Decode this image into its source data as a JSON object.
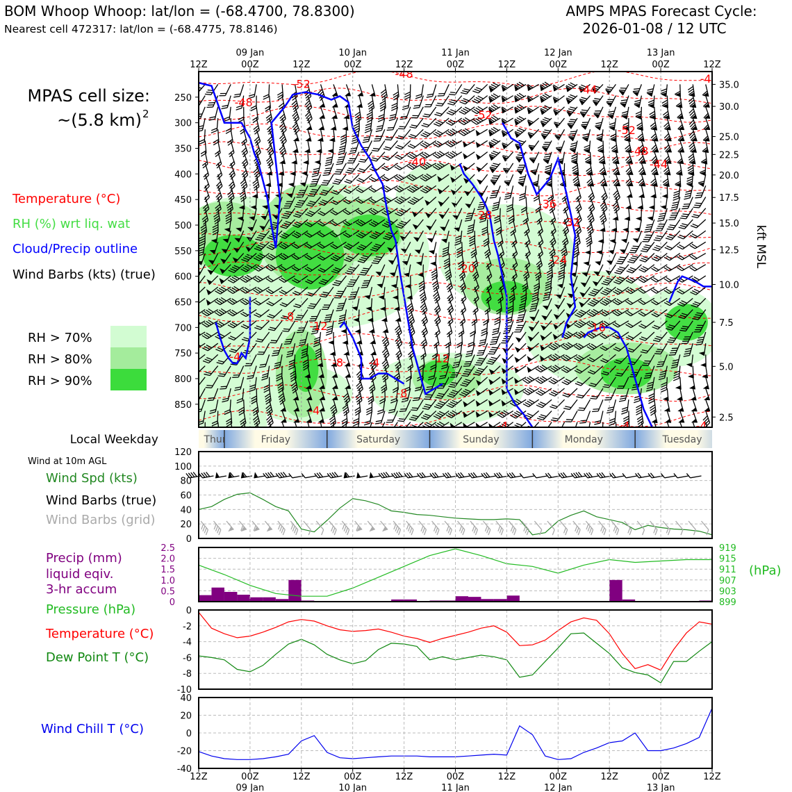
{
  "header": {
    "title_left": "BOM Whoop Whoop: lat/lon = (-68.4700, 78.8300)",
    "subtitle_left": "Nearest cell 472317: lat/lon = (-68.4775, 78.8146)",
    "title_right_line1": "AMPS MPAS Forecast Cycle:",
    "title_right_line2": "2026-01-08 / 12 UTC"
  },
  "cell_size": {
    "line1": "MPAS cell size:",
    "line2": "~(5.8 km)",
    "sup": "2"
  },
  "legend": {
    "temperature": "Temperature (°C)",
    "rh": "RH (%) wrt liq. wat",
    "cloud": "Cloud/Precip outline",
    "barbs": "Wind Barbs (kts) (true)",
    "rh70": "RH > 70%",
    "rh80": "RH > 80%",
    "rh90": "RH > 90%"
  },
  "colors": {
    "temperature": "#ff0000",
    "rh_label": "#44dd44",
    "cloud": "#0000ff",
    "rh70": "#d2fcd2",
    "rh80": "#a4ec9c",
    "rh90": "#3cdc3c",
    "wind_spd": "#228822",
    "precip": "#800080",
    "pressure": "#22bb22",
    "dewpoint": "#118811",
    "windchill": "#0000ee",
    "grid_barbs": "#aaaaaa"
  },
  "time_axis": {
    "ticks": [
      "12Z",
      "00Z",
      "12Z",
      "00Z",
      "12Z",
      "00Z",
      "12Z",
      "00Z",
      "12Z",
      "00Z",
      "12Z"
    ],
    "dates": [
      "09 Jan",
      "10 Jan",
      "11 Jan",
      "12 Jan",
      "13 Jan"
    ]
  },
  "weekday": {
    "label": "Local Weekday",
    "days": [
      "Thursday",
      "Friday",
      "Saturday",
      "Sunday",
      "Monday",
      "Tuesday"
    ]
  },
  "wind10m": {
    "title": "Wind at 10m AGL",
    "spd_label": "Wind Spd (kts)",
    "barbs_true_label": "Wind Barbs (true)",
    "barbs_grid_label": "Wind Barbs (grid)"
  },
  "precip_panel": {
    "line1": "Precip (mm)",
    "line2": "liquid eqiv.",
    "line3": "3-hr accum",
    "pressure_label": "Pressure (hPa)",
    "hpa_unit": "(hPa)"
  },
  "temp_panel": {
    "temp_label": "Temperature (°C)",
    "dew_label": "Dew Point T (°C)"
  },
  "chill_panel": {
    "label": "Wind Chill T (°C)"
  },
  "chart_data": [
    {
      "type": "heatmap",
      "name": "cross-section",
      "x_hours": [
        0,
        120
      ],
      "y_pressure": {
        "ticks": [
          250,
          300,
          350,
          400,
          450,
          500,
          550,
          600,
          650,
          700,
          750,
          800,
          850
        ],
        "range": [
          200,
          895
        ]
      },
      "y_kft": {
        "label": "kft MSL",
        "ticks": [
          "35.0",
          "30.0",
          "25.0",
          "22.5",
          "20.0",
          "17.5",
          "15.0",
          "12.5",
          "10.0",
          "7.5",
          "5.0",
          "2.5"
        ],
        "tick_pressure": [
          225,
          268,
          327,
          362,
          402,
          446,
          496,
          548,
          616,
          690,
          776,
          875
        ]
      },
      "temperature_labels": [
        {
          "t": 24,
          "p": 232,
          "text": "-52"
        },
        {
          "t": 48,
          "p": 212,
          "text": "-48"
        },
        {
          "t": 10.5,
          "p": 268,
          "text": "-48"
        },
        {
          "t": 66.5,
          "p": 292,
          "text": "-52"
        },
        {
          "t": 100,
          "p": 322,
          "text": "-52"
        },
        {
          "t": 91,
          "p": 243,
          "text": "-44"
        },
        {
          "t": 103,
          "p": 363,
          "text": "-48"
        },
        {
          "t": 107.5,
          "p": 389,
          "text": "-44"
        },
        {
          "t": 51,
          "p": 384,
          "text": "-40"
        },
        {
          "t": 81.5,
          "p": 466,
          "text": "-36"
        },
        {
          "t": 87,
          "p": 502,
          "text": "-32"
        },
        {
          "t": 66.5,
          "p": 488,
          "text": "-28"
        },
        {
          "t": 84,
          "p": 575,
          "text": "-24"
        },
        {
          "t": 62.5,
          "p": 592,
          "text": "-20"
        },
        {
          "t": 93,
          "p": 708,
          "text": "-16"
        },
        {
          "t": 56.5,
          "p": 768,
          "text": "-12"
        },
        {
          "t": 28,
          "p": 705,
          "text": "-12"
        },
        {
          "t": 21,
          "p": 686,
          "text": "-8"
        },
        {
          "t": 32.5,
          "p": 776,
          "text": "-8"
        },
        {
          "t": 47.5,
          "p": 836,
          "text": "-8"
        },
        {
          "t": 8.5,
          "p": 765,
          "text": "-4"
        },
        {
          "t": 41,
          "p": 776,
          "text": "-4"
        },
        {
          "t": 27,
          "p": 870,
          "text": "-4"
        },
        {
          "t": 71,
          "p": 900,
          "text": "-4"
        },
        {
          "t": 99.5,
          "p": 900,
          "text": "-4"
        },
        {
          "t": 117.5,
          "p": 900,
          "text": "-4"
        },
        {
          "t": 118.5,
          "p": 222,
          "text": "-4"
        }
      ]
    },
    {
      "type": "line",
      "name": "wind-speed",
      "x_hours": [
        0,
        3,
        6,
        9,
        12,
        15,
        18,
        21,
        24,
        27,
        30,
        33,
        36,
        39,
        42,
        45,
        48,
        51,
        54,
        57,
        60,
        63,
        66,
        69,
        72,
        75,
        78,
        81,
        84,
        87,
        90,
        93,
        96,
        99,
        102,
        105,
        108,
        111,
        114,
        117,
        120
      ],
      "values": [
        40,
        44,
        54,
        61,
        63,
        54,
        44,
        38,
        13,
        9,
        25,
        42,
        55,
        52,
        47,
        38,
        36,
        33,
        32,
        30,
        28,
        27,
        26,
        26,
        27,
        26,
        5,
        8,
        24,
        32,
        38,
        30,
        26,
        22,
        12,
        18,
        15,
        13,
        12,
        10,
        5
      ],
      "ylim": [
        0,
        120
      ],
      "yticks": [
        0,
        20,
        40,
        60,
        80,
        100,
        120
      ]
    },
    {
      "type": "bar",
      "name": "precip",
      "x_hours": [
        1.5,
        4.5,
        7.5,
        10.5,
        13.5,
        16.5,
        19.5,
        22.5,
        25.5,
        28.5,
        31.5,
        34.5,
        37.5,
        40.5,
        43.5,
        46.5,
        49.5,
        52.5,
        55.5,
        58.5,
        61.5,
        64.5,
        67.5,
        70.5,
        73.5,
        76.5,
        79.5,
        82.5,
        85.5,
        88.5,
        91.5,
        94.5,
        97.5,
        100.5,
        103.5,
        106.5,
        109.5,
        112.5,
        115.5,
        118.5
      ],
      "values": [
        0.3,
        0.65,
        0.45,
        0.32,
        0.2,
        0.2,
        0.12,
        1.0,
        0.05,
        0,
        0,
        0,
        0,
        0,
        0,
        0.1,
        0.1,
        0,
        0.05,
        0.05,
        0.25,
        0.22,
        0.12,
        0.12,
        0.28,
        0,
        0,
        0,
        0,
        0,
        0,
        0,
        1.0,
        0.1,
        0,
        0,
        0,
        0,
        0,
        0.05
      ],
      "ylim": [
        0,
        2.5
      ],
      "yticks": [
        0,
        0.5,
        1.0,
        1.5,
        2.0,
        2.5
      ]
    },
    {
      "type": "line",
      "name": "pressure",
      "x_hours": [
        0,
        6,
        12,
        18,
        24,
        30,
        36,
        42,
        48,
        54,
        60,
        66,
        72,
        78,
        84,
        90,
        96,
        102,
        108,
        114,
        120
      ],
      "values": [
        912.5,
        909,
        905,
        902,
        901,
        901,
        904,
        908,
        912,
        916,
        918.5,
        916,
        913,
        912,
        909.5,
        912.5,
        914.5,
        913.5,
        914,
        914.5,
        914.5
      ],
      "ylim": [
        899,
        919
      ],
      "yticks": [
        899,
        903,
        907,
        911,
        915,
        919
      ]
    },
    {
      "type": "line",
      "name": "temperature-dewpoint",
      "x_hours": [
        0,
        3,
        6,
        9,
        12,
        15,
        18,
        21,
        24,
        27,
        30,
        33,
        36,
        39,
        42,
        45,
        48,
        51,
        54,
        57,
        60,
        63,
        66,
        69,
        72,
        75,
        78,
        81,
        84,
        87,
        90,
        93,
        96,
        99,
        102,
        105,
        108,
        111,
        114,
        117,
        120
      ],
      "series": [
        {
          "name": "Temperature",
          "values": [
            -0.3,
            -2.3,
            -3.0,
            -3.5,
            -3.3,
            -2.8,
            -2.2,
            -1.5,
            -1.2,
            -1.4,
            -2.0,
            -2.5,
            -2.7,
            -2.6,
            -2.4,
            -2.8,
            -3.3,
            -3.6,
            -4.1,
            -3.6,
            -3.2,
            -2.8,
            -2.3,
            -2.0,
            -2.8,
            -4.5,
            -4.4,
            -3.8,
            -2.6,
            -1.5,
            -1.0,
            -1.3,
            -3.0,
            -5.5,
            -7.4,
            -6.9,
            -7.6,
            -5.0,
            -2.9,
            -1.5,
            -1.8
          ]
        },
        {
          "name": "Dew Point",
          "values": [
            -5.8,
            -6.0,
            -6.3,
            -7.5,
            -7.8,
            -7.0,
            -5.6,
            -4.3,
            -3.7,
            -4.4,
            -5.6,
            -6.3,
            -6.8,
            -6.4,
            -5.0,
            -4.2,
            -4.3,
            -4.6,
            -6.3,
            -5.9,
            -6.3,
            -6.0,
            -5.7,
            -5.9,
            -6.3,
            -8.5,
            -8.2,
            -6.5,
            -4.8,
            -3.0,
            -2.9,
            -4.2,
            -5.5,
            -7.3,
            -7.9,
            -8.2,
            -9.2,
            -6.5,
            -6.5,
            -5.2,
            -4.0
          ]
        }
      ],
      "ylim": [
        -10,
        0
      ],
      "yticks": [
        -10,
        -8,
        -6,
        -4,
        -2,
        0
      ]
    },
    {
      "type": "line",
      "name": "wind-chill",
      "x_hours": [
        0,
        3,
        6,
        9,
        12,
        15,
        18,
        21,
        24,
        27,
        30,
        33,
        36,
        39,
        42,
        45,
        48,
        51,
        54,
        57,
        60,
        63,
        66,
        69,
        72,
        75,
        78,
        81,
        84,
        87,
        90,
        93,
        96,
        99,
        102,
        105,
        108,
        111,
        114,
        117,
        120
      ],
      "values": [
        -21,
        -26,
        -29,
        -30,
        -30,
        -29,
        -27,
        -24,
        -9,
        -3,
        -22,
        -28,
        -29,
        -28,
        -27,
        -26,
        -26,
        -26,
        -27,
        -27,
        -27,
        -26,
        -25,
        -24,
        -25,
        8,
        -2,
        -26,
        -30,
        -29,
        -22,
        -17,
        -11,
        -9,
        0,
        -20,
        -20,
        -17,
        -12,
        -5,
        28
      ],
      "ylim": [
        -40,
        40
      ],
      "yticks": [
        -40,
        -20,
        0,
        20,
        40
      ]
    }
  ]
}
